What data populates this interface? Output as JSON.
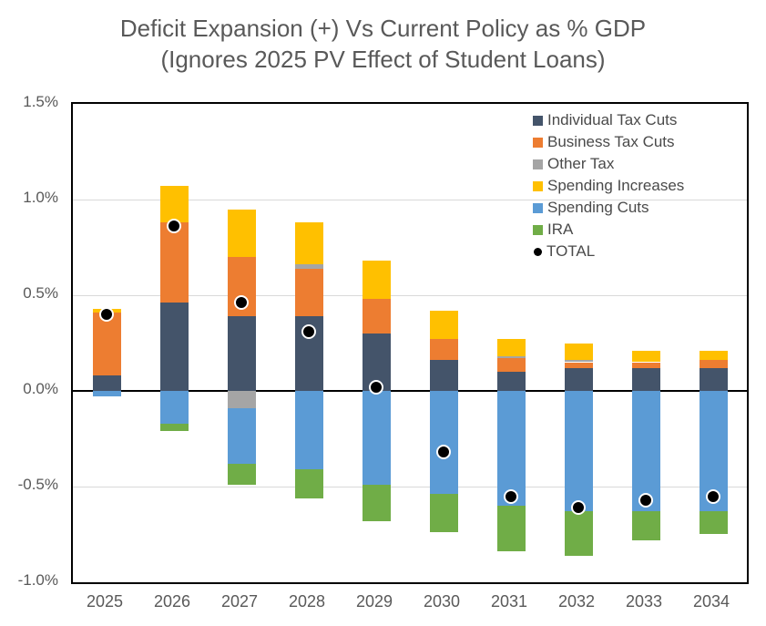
{
  "title": {
    "line1": "Deficit Expansion (+) Vs Current Policy as % GDP",
    "line2": "(Ignores 2025 PV Effect of Student Loans)"
  },
  "chart_data": {
    "type": "bar",
    "stacked": true,
    "overlay": "scatter (TOTAL dots)",
    "grid": "horizontal, light gray",
    "legend_position": "top-right inside plot",
    "categories": [
      "2025",
      "2026",
      "2027",
      "2028",
      "2029",
      "2030",
      "2031",
      "2032",
      "2033",
      "2034"
    ],
    "series": [
      {
        "name": "Individual Tax Cuts",
        "color": "#44546A",
        "values": [
          0.08,
          0.46,
          0.39,
          0.39,
          0.3,
          0.16,
          0.1,
          0.12,
          0.12,
          0.12
        ]
      },
      {
        "name": "Business Tax Cuts",
        "color": "#ED7D31",
        "values": [
          0.33,
          0.42,
          0.31,
          0.25,
          0.18,
          0.11,
          0.07,
          0.03,
          0.03,
          0.04
        ]
      },
      {
        "name": "Other Tax",
        "color": "#A5A5A5",
        "values": [
          0,
          0,
          -0.09,
          0.02,
          0,
          0,
          0.01,
          0.01,
          0,
          0
        ]
      },
      {
        "name": "Spending Increases",
        "color": "#FFC000",
        "values": [
          0.02,
          0.19,
          0.25,
          0.22,
          0.2,
          0.15,
          0.09,
          0.09,
          0.06,
          0.05
        ]
      },
      {
        "name": "Spending Cuts",
        "color": "#5B9BD5",
        "values": [
          -0.03,
          -0.17,
          -0.29,
          -0.41,
          -0.49,
          -0.54,
          -0.6,
          -0.63,
          -0.63,
          -0.63
        ]
      },
      {
        "name": "IRA",
        "color": "#70AD47",
        "values": [
          0,
          -0.04,
          -0.11,
          -0.15,
          -0.19,
          -0.2,
          -0.24,
          -0.23,
          -0.15,
          -0.12
        ]
      }
    ],
    "total": {
      "name": "TOTAL",
      "color": "#000000",
      "values": [
        0.4,
        0.86,
        0.46,
        0.31,
        0.02,
        -0.32,
        -0.55,
        -0.61,
        -0.57,
        -0.55
      ]
    },
    "y_axis": {
      "min": -1.0,
      "max": 1.5,
      "step": 0.5,
      "ticks": [
        {
          "label": "1.5%",
          "value": 1.5
        },
        {
          "label": "1.0%",
          "value": 1.0
        },
        {
          "label": "0.5%",
          "value": 0.5
        },
        {
          "label": "0.0%",
          "value": 0.0
        },
        {
          "label": "-0.5%",
          "value": -0.5
        },
        {
          "label": "-1.0%",
          "value": -1.0
        }
      ]
    },
    "xlabel": "",
    "ylabel": ""
  }
}
